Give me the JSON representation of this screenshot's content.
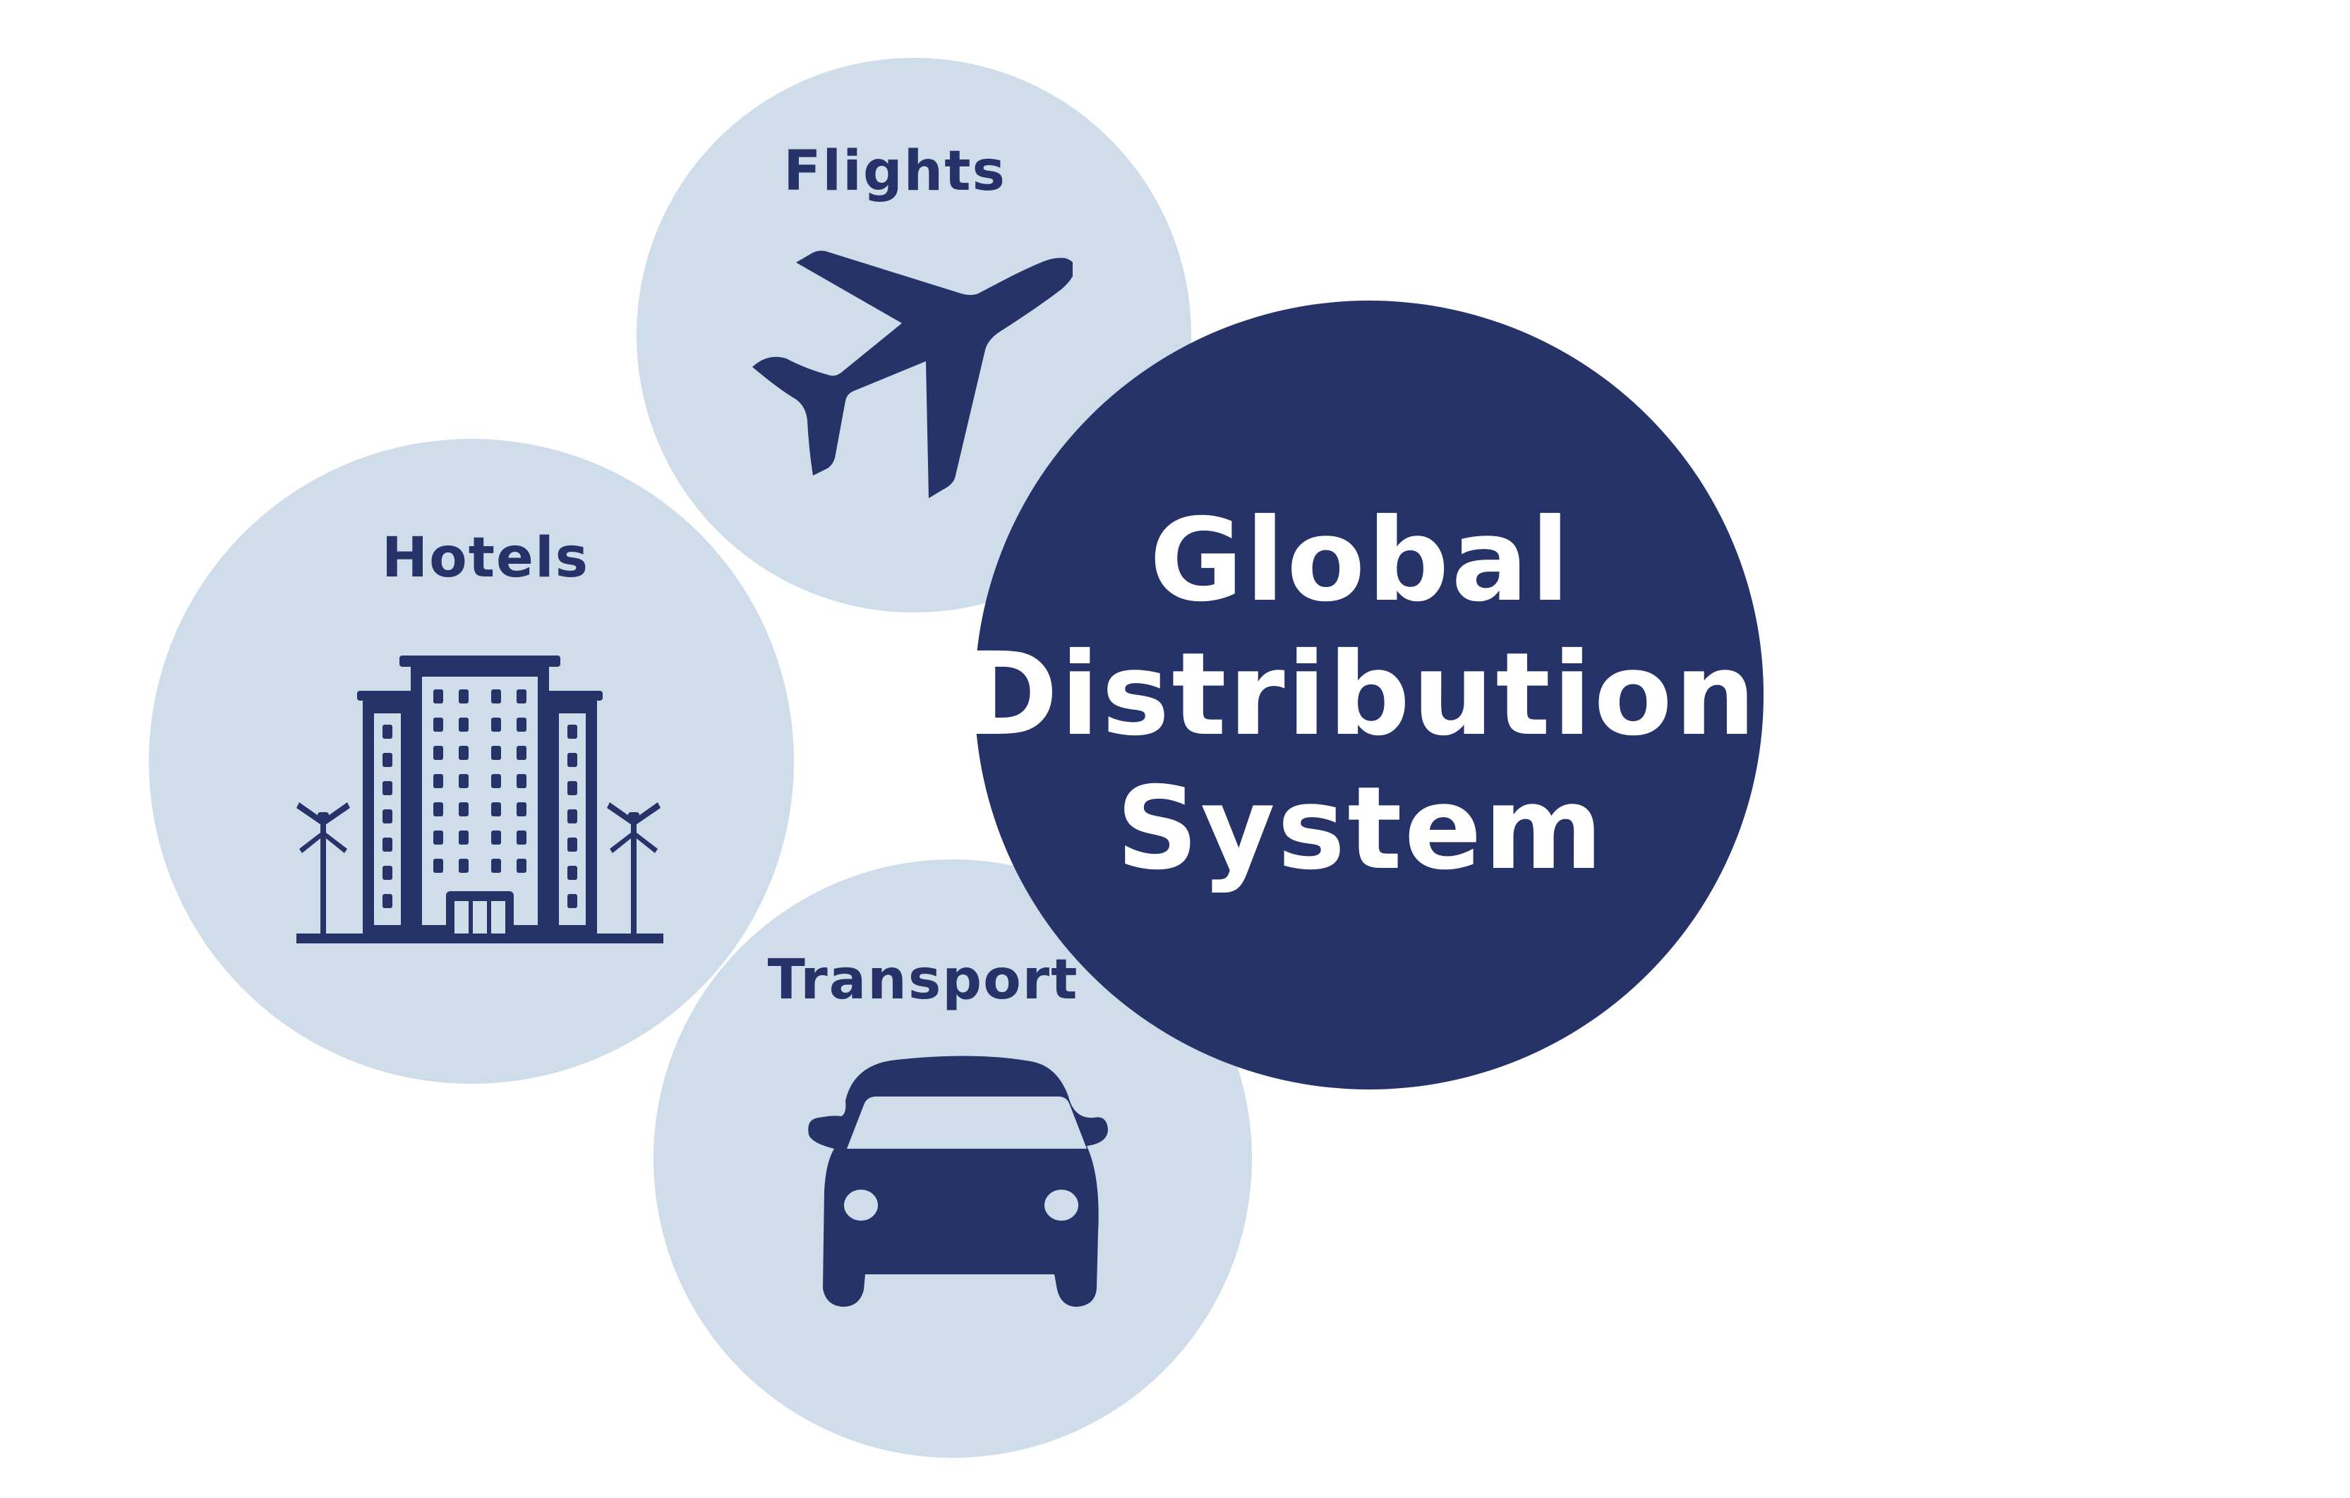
{
  "center": {
    "title_lines": [
      "Global",
      "Distribution",
      "System"
    ]
  },
  "nodes": {
    "flights": {
      "label": "Flights",
      "icon": "airplane-icon"
    },
    "hotels": {
      "label": "Hotels",
      "icon": "hotel-building-icon"
    },
    "transport": {
      "label": "Transport",
      "icon": "car-icon"
    }
  },
  "colors": {
    "light_circle": "#cfdce9",
    "dark_circle": "#253368",
    "icon": "#253368",
    "center_text": "#ffffff"
  }
}
